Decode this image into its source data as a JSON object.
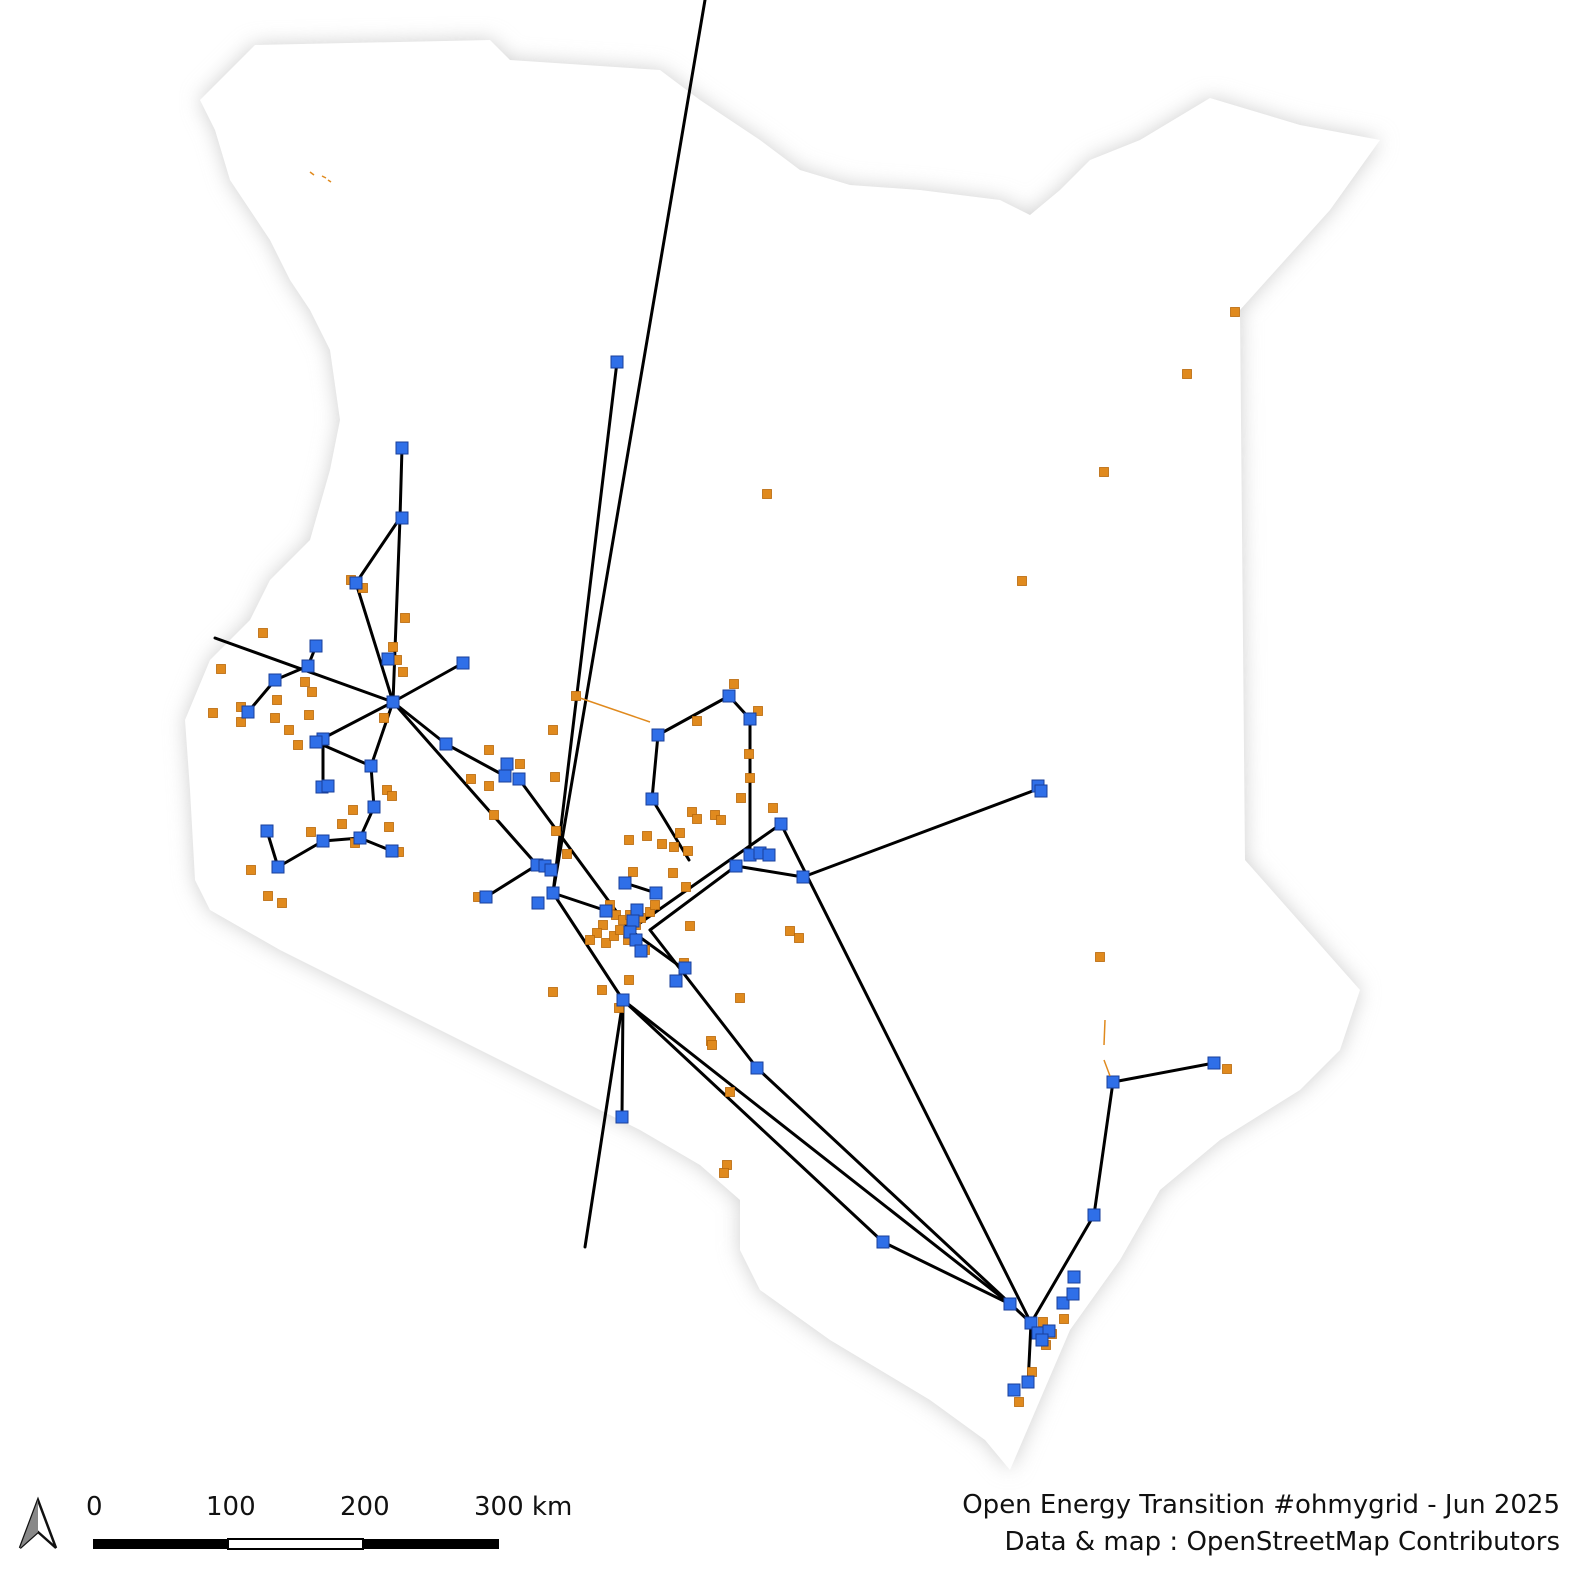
{
  "attribution": {
    "line1": "Open Energy Transition #ohmygrid - Jun 2025",
    "line2": "Data & map : OpenStreetMap Contributors"
  },
  "scale_bar": {
    "labels": [
      "0",
      "100",
      "200",
      "300 km"
    ]
  },
  "north_arrow": {
    "icon": "north-arrow-icon"
  },
  "legend_colors": {
    "country_fill": "#ffffff",
    "country_halo": "#cfcfcf",
    "transmission_line": "#000000",
    "substation_major": "#2f6fe8",
    "substation_major_stroke": "#1a3f9a",
    "substation_minor": "#e08a1e",
    "substation_minor_stroke": "#b8680a"
  }
}
